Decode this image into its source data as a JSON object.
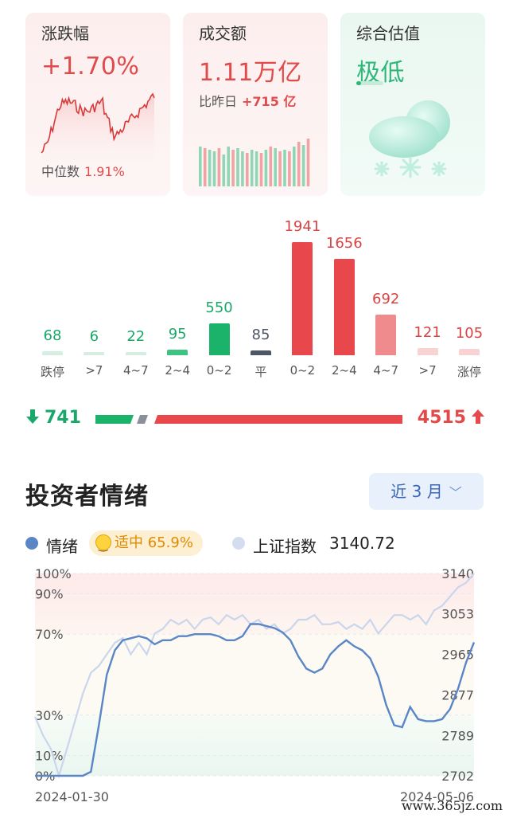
{
  "cards": {
    "change": {
      "title": "涨跌幅",
      "value": "+1.70%",
      "median_label": "中位数",
      "median_value": "1.91%"
    },
    "turnover": {
      "title": "成交额",
      "value": "1.11万亿",
      "compare_label": "比昨日",
      "compare_value": "+715 亿"
    },
    "valuation": {
      "title": "综合估值",
      "value": "极低",
      "icon": "snow-cloud-icon"
    }
  },
  "distribution": {
    "colors": {
      "up": "#e8474c",
      "down": "#1bb36a",
      "flat": "#4d5566"
    },
    "items": [
      {
        "label": "跌停",
        "value": "68",
        "type": "down-light"
      },
      {
        "label": ">7",
        "value": "6",
        "type": "down-light"
      },
      {
        "label": "4~7",
        "value": "22",
        "type": "down-light"
      },
      {
        "label": "2~4",
        "value": "95",
        "type": "down-mid"
      },
      {
        "label": "0~2",
        "value": "550",
        "type": "down"
      },
      {
        "label": "平",
        "value": "85",
        "type": "flat"
      },
      {
        "label": "0~2",
        "value": "1941",
        "type": "up"
      },
      {
        "label": "2~4",
        "value": "1656",
        "type": "up"
      },
      {
        "label": "4~7",
        "value": "692",
        "type": "up-mid"
      },
      {
        "label": ">7",
        "value": "121",
        "type": "up-light"
      },
      {
        "label": "涨停",
        "value": "105",
        "type": "up-light"
      }
    ]
  },
  "ratio": {
    "down_count": "741",
    "up_count": "4515",
    "down_arrow": "arrow-down-icon",
    "up_arrow": "arrow-up-icon"
  },
  "sentiment": {
    "title": "投资者情绪",
    "range_label": "近 3 月",
    "legend_mood": "情绪",
    "mood_level": "适中",
    "mood_value": "65.9%",
    "legend_index": "上证指数",
    "index_value": "3140.72"
  },
  "chart_data": {
    "type": "line",
    "x_start": "2024-01-30",
    "x_end": "2024-05-06",
    "y_left_ticks": [
      "100%",
      "90%",
      "70%",
      "30%",
      "10%",
      "0%"
    ],
    "y_right_ticks": [
      "3140",
      "3053",
      "2965",
      "2877",
      "2789",
      "2702"
    ],
    "series": [
      {
        "name": "情绪",
        "axis": "left",
        "color": "#5a86c6",
        "values": [
          0,
          0,
          0,
          0,
          0,
          0,
          0,
          2,
          25,
          50,
          62,
          67,
          68,
          69,
          68,
          65,
          67,
          67,
          69,
          69,
          70,
          70,
          70,
          69,
          67,
          67,
          69,
          75,
          75,
          74,
          73,
          71,
          67,
          59,
          53,
          51,
          53,
          60,
          64,
          67,
          64,
          62,
          58,
          49,
          35,
          25,
          24,
          34,
          28,
          27,
          27,
          28,
          33,
          43,
          56,
          66
        ]
      },
      {
        "name": "上证指数",
        "axis": "right",
        "color": "#c9d6ec",
        "values": [
          2830,
          2790,
          2760,
          2702,
          2760,
          2820,
          2880,
          2925,
          2940,
          2965,
          2990,
          3000,
          2965,
          2990,
          2965,
          3010,
          3020,
          3040,
          3030,
          3040,
          3020,
          3040,
          3045,
          3030,
          3050,
          3040,
          3050,
          3030,
          3040,
          3020,
          3030,
          3010,
          3020,
          3040,
          3040,
          3050,
          3030,
          3030,
          3035,
          3020,
          3030,
          3020,
          3040,
          3010,
          3030,
          3050,
          3050,
          3040,
          3050,
          3030,
          3060,
          3070,
          3090,
          3110,
          3120,
          3140
        ]
      }
    ]
  },
  "watermark": "www.365jz.com"
}
